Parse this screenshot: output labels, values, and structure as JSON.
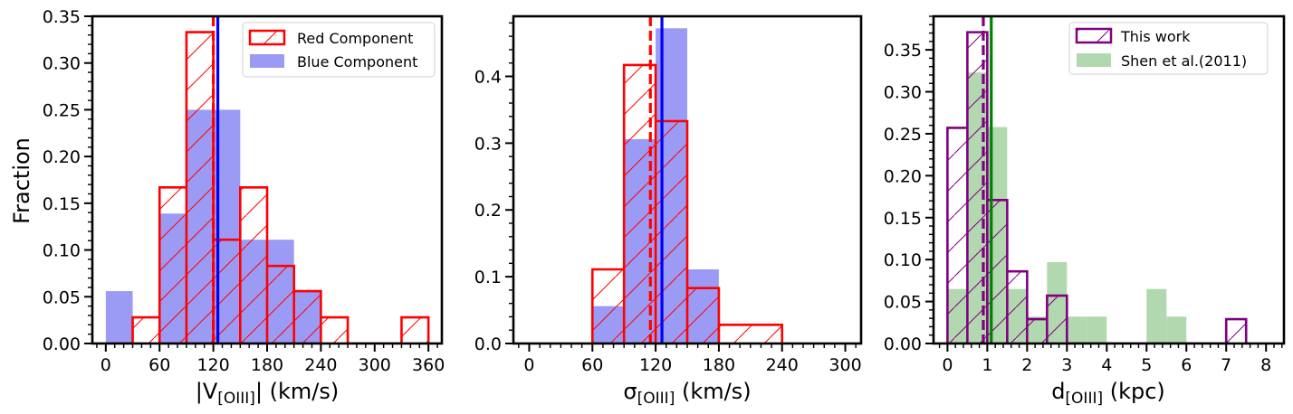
{
  "chart_data": [
    {
      "type": "bar",
      "title": "",
      "xlabel": "|V",
      "xlabel_sub": "[OIII]",
      "xlabel_tail": "| (km/s)",
      "ylabel": "Fraction",
      "xlim": [
        -15,
        375
      ],
      "ylim": [
        0,
        0.35
      ],
      "xticks": [
        0,
        60,
        120,
        180,
        240,
        300,
        360
      ],
      "xtick_labels": [
        "0",
        "60",
        "120",
        "180",
        "240",
        "300",
        "360"
      ],
      "yticks": [
        0,
        0.05,
        0.1,
        0.15,
        0.2,
        0.25,
        0.3,
        0.35
      ],
      "ytick_labels": [
        "0.00",
        "0.05",
        "0.10",
        "0.15",
        "0.20",
        "0.25",
        "0.30",
        "0.35"
      ],
      "legend": {
        "position": "top-right",
        "entries": [
          {
            "label": "Red Component",
            "style": "hatch",
            "color": "#ff0000"
          },
          {
            "label": "Blue Component",
            "style": "fill",
            "color": "#9b9bf5"
          }
        ]
      },
      "series": [
        {
          "name": "Blue Component",
          "style": "fill",
          "color": "#9b9bf5",
          "bins": [
            0,
            30,
            60,
            90,
            120,
            150,
            180,
            210,
            240
          ],
          "values": [
            0.056,
            0.0,
            0.139,
            0.25,
            0.25,
            0.111,
            0.111,
            0.056
          ]
        },
        {
          "name": "Red Component",
          "style": "hatch",
          "color": "#ff0000",
          "bins": [
            30,
            60,
            90,
            120,
            150,
            180,
            210,
            240,
            270,
            300,
            330,
            360
          ],
          "values": [
            0.028,
            0.167,
            0.333,
            0.111,
            0.167,
            0.083,
            0.056,
            0.028,
            0.0,
            0.0,
            0.028
          ]
        }
      ],
      "vlines": [
        {
          "name": "Red Component median",
          "x": 120,
          "color": "#ff0000",
          "dash": true
        },
        {
          "name": "Blue Component median",
          "x": 125,
          "color": "#0000ff",
          "dash": false
        }
      ]
    },
    {
      "type": "bar",
      "title": "",
      "xlabel": "σ",
      "xlabel_sub": "[OIII]",
      "xlabel_tail": " (km/s)",
      "ylabel": "",
      "xlim": [
        -15,
        315
      ],
      "ylim": [
        0,
        0.49
      ],
      "xticks": [
        0,
        60,
        120,
        180,
        240,
        300
      ],
      "xtick_labels": [
        "0",
        "60",
        "120",
        "180",
        "240",
        "300"
      ],
      "yticks": [
        0,
        0.1,
        0.2,
        0.3,
        0.4
      ],
      "ytick_labels": [
        "0.0",
        "0.1",
        "0.2",
        "0.3",
        "0.4"
      ],
      "legend": null,
      "series": [
        {
          "name": "Blue Component",
          "style": "fill",
          "color": "#9b9bf5",
          "bins": [
            60,
            90,
            120,
            150,
            180
          ],
          "values": [
            0.056,
            0.306,
            0.472,
            0.111
          ]
        },
        {
          "name": "Red Component",
          "style": "hatch",
          "color": "#ff0000",
          "bins": [
            60,
            90,
            120,
            150,
            180,
            240
          ],
          "values": [
            0.111,
            0.417,
            0.333,
            0.083,
            0.028
          ]
        }
      ],
      "vlines": [
        {
          "name": "Red Component median",
          "x": 115,
          "color": "#ff0000",
          "dash": true
        },
        {
          "name": "Blue Component median",
          "x": 126,
          "color": "#0000ff",
          "dash": false
        }
      ]
    },
    {
      "type": "bar",
      "title": "",
      "xlabel": "d",
      "xlabel_sub": "[OIII]",
      "xlabel_tail": " (kpc)",
      "ylabel": "",
      "xlim": [
        -0.35,
        8.45
      ],
      "ylim": [
        0,
        0.39
      ],
      "xticks": [
        0,
        1,
        2,
        3,
        4,
        5,
        6,
        7,
        8
      ],
      "xtick_labels": [
        "0",
        "1",
        "2",
        "3",
        "4",
        "5",
        "6",
        "7",
        "8"
      ],
      "yticks": [
        0,
        0.05,
        0.1,
        0.15,
        0.2,
        0.25,
        0.3,
        0.35
      ],
      "ytick_labels": [
        "0.00",
        "0.05",
        "0.10",
        "0.15",
        "0.20",
        "0.25",
        "0.30",
        "0.35"
      ],
      "legend": {
        "position": "top-right",
        "entries": [
          {
            "label": "This work",
            "style": "hatch",
            "color": "#800080"
          },
          {
            "label": "Shen et al.(2011)",
            "style": "fill",
            "color": "#b2d8b0"
          }
        ]
      },
      "series": [
        {
          "name": "Shen et al.(2011)",
          "style": "fill",
          "color": "#b2d8b0",
          "bins": [
            0,
            0.5,
            1.0,
            1.5,
            2.0,
            2.5,
            3.0,
            3.5,
            4.0,
            4.5,
            5.0,
            5.5,
            6.0
          ],
          "values": [
            0.065,
            0.323,
            0.258,
            0.065,
            0.032,
            0.097,
            0.032,
            0.032,
            0.0,
            0.0,
            0.065,
            0.032
          ]
        },
        {
          "name": "This work",
          "style": "hatch",
          "color": "#800080",
          "bins": [
            0,
            0.5,
            1.0,
            1.5,
            2.0,
            2.5,
            3.0,
            3.5,
            4.0,
            4.5,
            5.0,
            5.5,
            6.0,
            6.5,
            7.0,
            7.5
          ],
          "values": [
            0.257,
            0.371,
            0.171,
            0.086,
            0.029,
            0.057,
            0.0,
            0.0,
            0.0,
            0.0,
            0.0,
            0.0,
            0.0,
            0.0,
            0.029
          ]
        }
      ],
      "vlines": [
        {
          "name": "This work median",
          "x": 0.9,
          "color": "#800080",
          "dash": true
        },
        {
          "name": "Shen et al.(2011) median",
          "x": 1.1,
          "color": "#008000",
          "dash": false
        }
      ]
    }
  ]
}
